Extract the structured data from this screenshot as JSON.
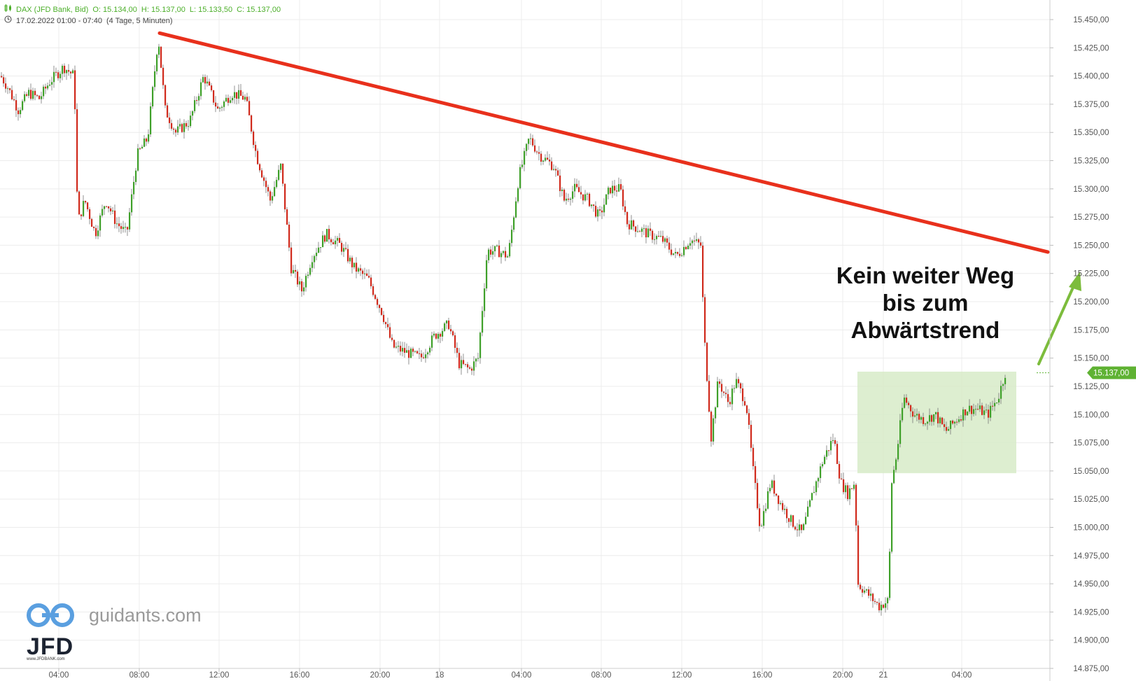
{
  "header": {
    "instrument": "DAX (JFD Bank, Bid)",
    "open": "O: 15.134,00",
    "high": "H: 15.137,00",
    "low": "L: 15.133,50",
    "close": "C: 15.137,00",
    "range": "17.02.2022 01:00 - 07:40",
    "period": "(4 Tage, 5 Minuten)"
  },
  "annotation": {
    "line1": "Kein weiter Weg",
    "line2": "bis zum",
    "line3": "Abwärtstrend"
  },
  "price_tag": "15.137,00",
  "branding": {
    "site": "guidants.com",
    "broker": "JFD",
    "url": "www.JFDBANK.com"
  },
  "colors": {
    "up": "#3fa02a",
    "down": "#d02a1c",
    "trendline": "#e8301c",
    "arrow": "#7cbc3c",
    "zone": "#d7ebc8",
    "grid": "#ececec"
  },
  "chart_data": {
    "type": "candlestick",
    "y_ticks": [
      "15.450,00",
      "15.425,00",
      "15.400,00",
      "15.375,00",
      "15.350,00",
      "15.325,00",
      "15.300,00",
      "15.275,00",
      "15.250,00",
      "15.225,00",
      "15.200,00",
      "15.175,00",
      "15.150,00",
      "15.125,00",
      "15.100,00",
      "15.075,00",
      "15.050,00",
      "15.025,00",
      "15.000,00",
      "14.975,00",
      "14.950,00",
      "14.925,00",
      "14.900,00",
      "14.875,00"
    ],
    "ylim": [
      14870,
      15460
    ],
    "x_ticks": [
      "04:00",
      "08:00",
      "12:00",
      "16:00",
      "20:00",
      "18",
      "04:00",
      "08:00",
      "12:00",
      "16:00",
      "20:00",
      "21",
      "04:00"
    ],
    "path": [
      [
        0,
        15400
      ],
      [
        10,
        15390
      ],
      [
        25,
        15370
      ],
      [
        40,
        15385
      ],
      [
        55,
        15380
      ],
      [
        70,
        15395
      ],
      [
        90,
        15408
      ],
      [
        105,
        15400
      ],
      [
        110,
        15270
      ],
      [
        120,
        15290
      ],
      [
        135,
        15260
      ],
      [
        150,
        15290
      ],
      [
        165,
        15270
      ],
      [
        180,
        15260
      ],
      [
        195,
        15330
      ],
      [
        210,
        15345
      ],
      [
        225,
        15435
      ],
      [
        235,
        15370
      ],
      [
        250,
        15350
      ],
      [
        270,
        15360
      ],
      [
        290,
        15400
      ],
      [
        310,
        15370
      ],
      [
        330,
        15385
      ],
      [
        350,
        15380
      ],
      [
        365,
        15330
      ],
      [
        375,
        15310
      ],
      [
        385,
        15290
      ],
      [
        400,
        15320
      ],
      [
        415,
        15230
      ],
      [
        430,
        15210
      ],
      [
        445,
        15240
      ],
      [
        465,
        15260
      ],
      [
        485,
        15250
      ],
      [
        505,
        15230
      ],
      [
        525,
        15220
      ],
      [
        545,
        15190
      ],
      [
        560,
        15160
      ],
      [
        580,
        15155
      ],
      [
        600,
        15150
      ],
      [
        620,
        15170
      ],
      [
        640,
        15180
      ],
      [
        655,
        15145
      ],
      [
        670,
        15140
      ],
      [
        682,
        15150
      ],
      [
        695,
        15245
      ],
      [
        710,
        15245
      ],
      [
        725,
        15240
      ],
      [
        740,
        15310
      ],
      [
        755,
        15345
      ],
      [
        770,
        15330
      ],
      [
        790,
        15320
      ],
      [
        805,
        15290
      ],
      [
        820,
        15300
      ],
      [
        840,
        15290
      ],
      [
        855,
        15275
      ],
      [
        870,
        15300
      ],
      [
        885,
        15300
      ],
      [
        895,
        15270
      ],
      [
        910,
        15265
      ],
      [
        925,
        15260
      ],
      [
        945,
        15255
      ],
      [
        965,
        15240
      ],
      [
        985,
        15255
      ],
      [
        1000,
        15250
      ],
      [
        1005,
        15170
      ],
      [
        1015,
        15080
      ],
      [
        1025,
        15130
      ],
      [
        1040,
        15110
      ],
      [
        1050,
        15130
      ],
      [
        1065,
        15110
      ],
      [
        1075,
        15050
      ],
      [
        1085,
        15000
      ],
      [
        1100,
        15040
      ],
      [
        1115,
        15020
      ],
      [
        1130,
        15005
      ],
      [
        1145,
        14995
      ],
      [
        1160,
        15030
      ],
      [
        1175,
        15060
      ],
      [
        1190,
        15080
      ],
      [
        1200,
        15040
      ],
      [
        1210,
        15030
      ],
      [
        1220,
        15040
      ],
      [
        1225,
        14950
      ],
      [
        1240,
        14940
      ],
      [
        1255,
        14930
      ],
      [
        1268,
        14935
      ],
      [
        1273,
        15040
      ],
      [
        1280,
        15065
      ],
      [
        1290,
        15115
      ],
      [
        1305,
        15100
      ],
      [
        1320,
        15095
      ],
      [
        1335,
        15100
      ],
      [
        1350,
        15085
      ],
      [
        1365,
        15095
      ],
      [
        1380,
        15105
      ],
      [
        1395,
        15105
      ],
      [
        1410,
        15100
      ],
      [
        1425,
        15115
      ],
      [
        1435,
        15137
      ]
    ],
    "trendline": {
      "start": [
        228,
        15438
      ],
      "end": [
        1497,
        15244
      ]
    },
    "zone": {
      "x_start": 1225,
      "x_end": 1452,
      "y_low": 15048,
      "y_high": 15138
    },
    "last_price": 15137
  }
}
